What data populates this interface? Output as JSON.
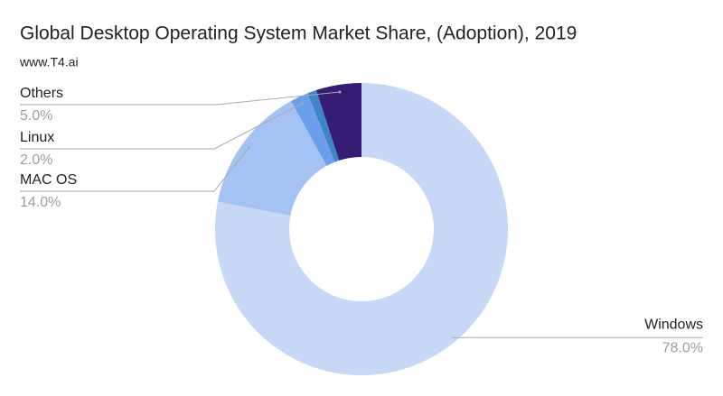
{
  "chart_data": {
    "type": "pie",
    "title": "Global Desktop Operating System Market Share, (Adoption), 2019",
    "subtitle": "www.T4.ai",
    "categories": [
      "Windows",
      "MAC OS",
      "Linux",
      null,
      "Others"
    ],
    "values": [
      78,
      14,
      2,
      1,
      5
    ],
    "value_labels": [
      "78.0%",
      "14.0%",
      "2.0%",
      null,
      "5.0%"
    ],
    "colors": [
      "#c6d8f5",
      "#a4c2f4",
      "#6d9eeb",
      "#3d85c6",
      "#351c75"
    ],
    "donut": true
  }
}
